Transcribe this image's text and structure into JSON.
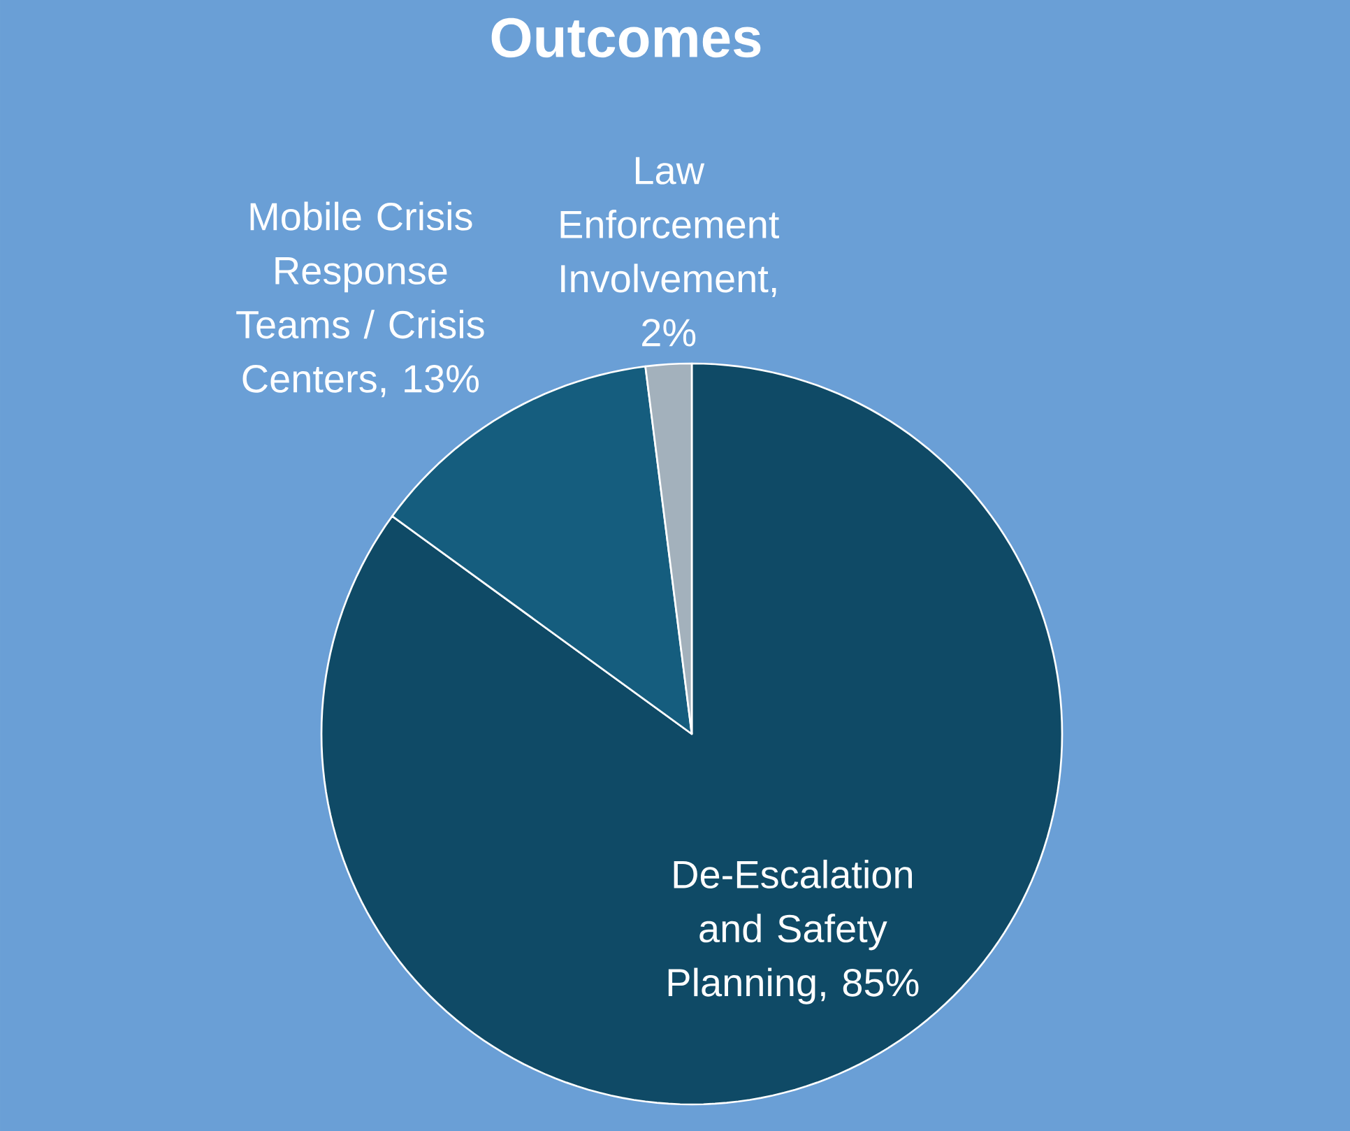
{
  "chart_data": {
    "type": "pie",
    "title": "Outcomes",
    "categories": [
      "De-Escalation and Safety Planning, 85%",
      "Mobile Crisis Response Teams / Crisis Centers, 13%",
      "Law Enforcement Involvement, 2%"
    ],
    "values": [
      85,
      13,
      2
    ],
    "colors": [
      "#0f4a66",
      "#155d7e",
      "#a3b1bc"
    ],
    "legend": false
  }
}
